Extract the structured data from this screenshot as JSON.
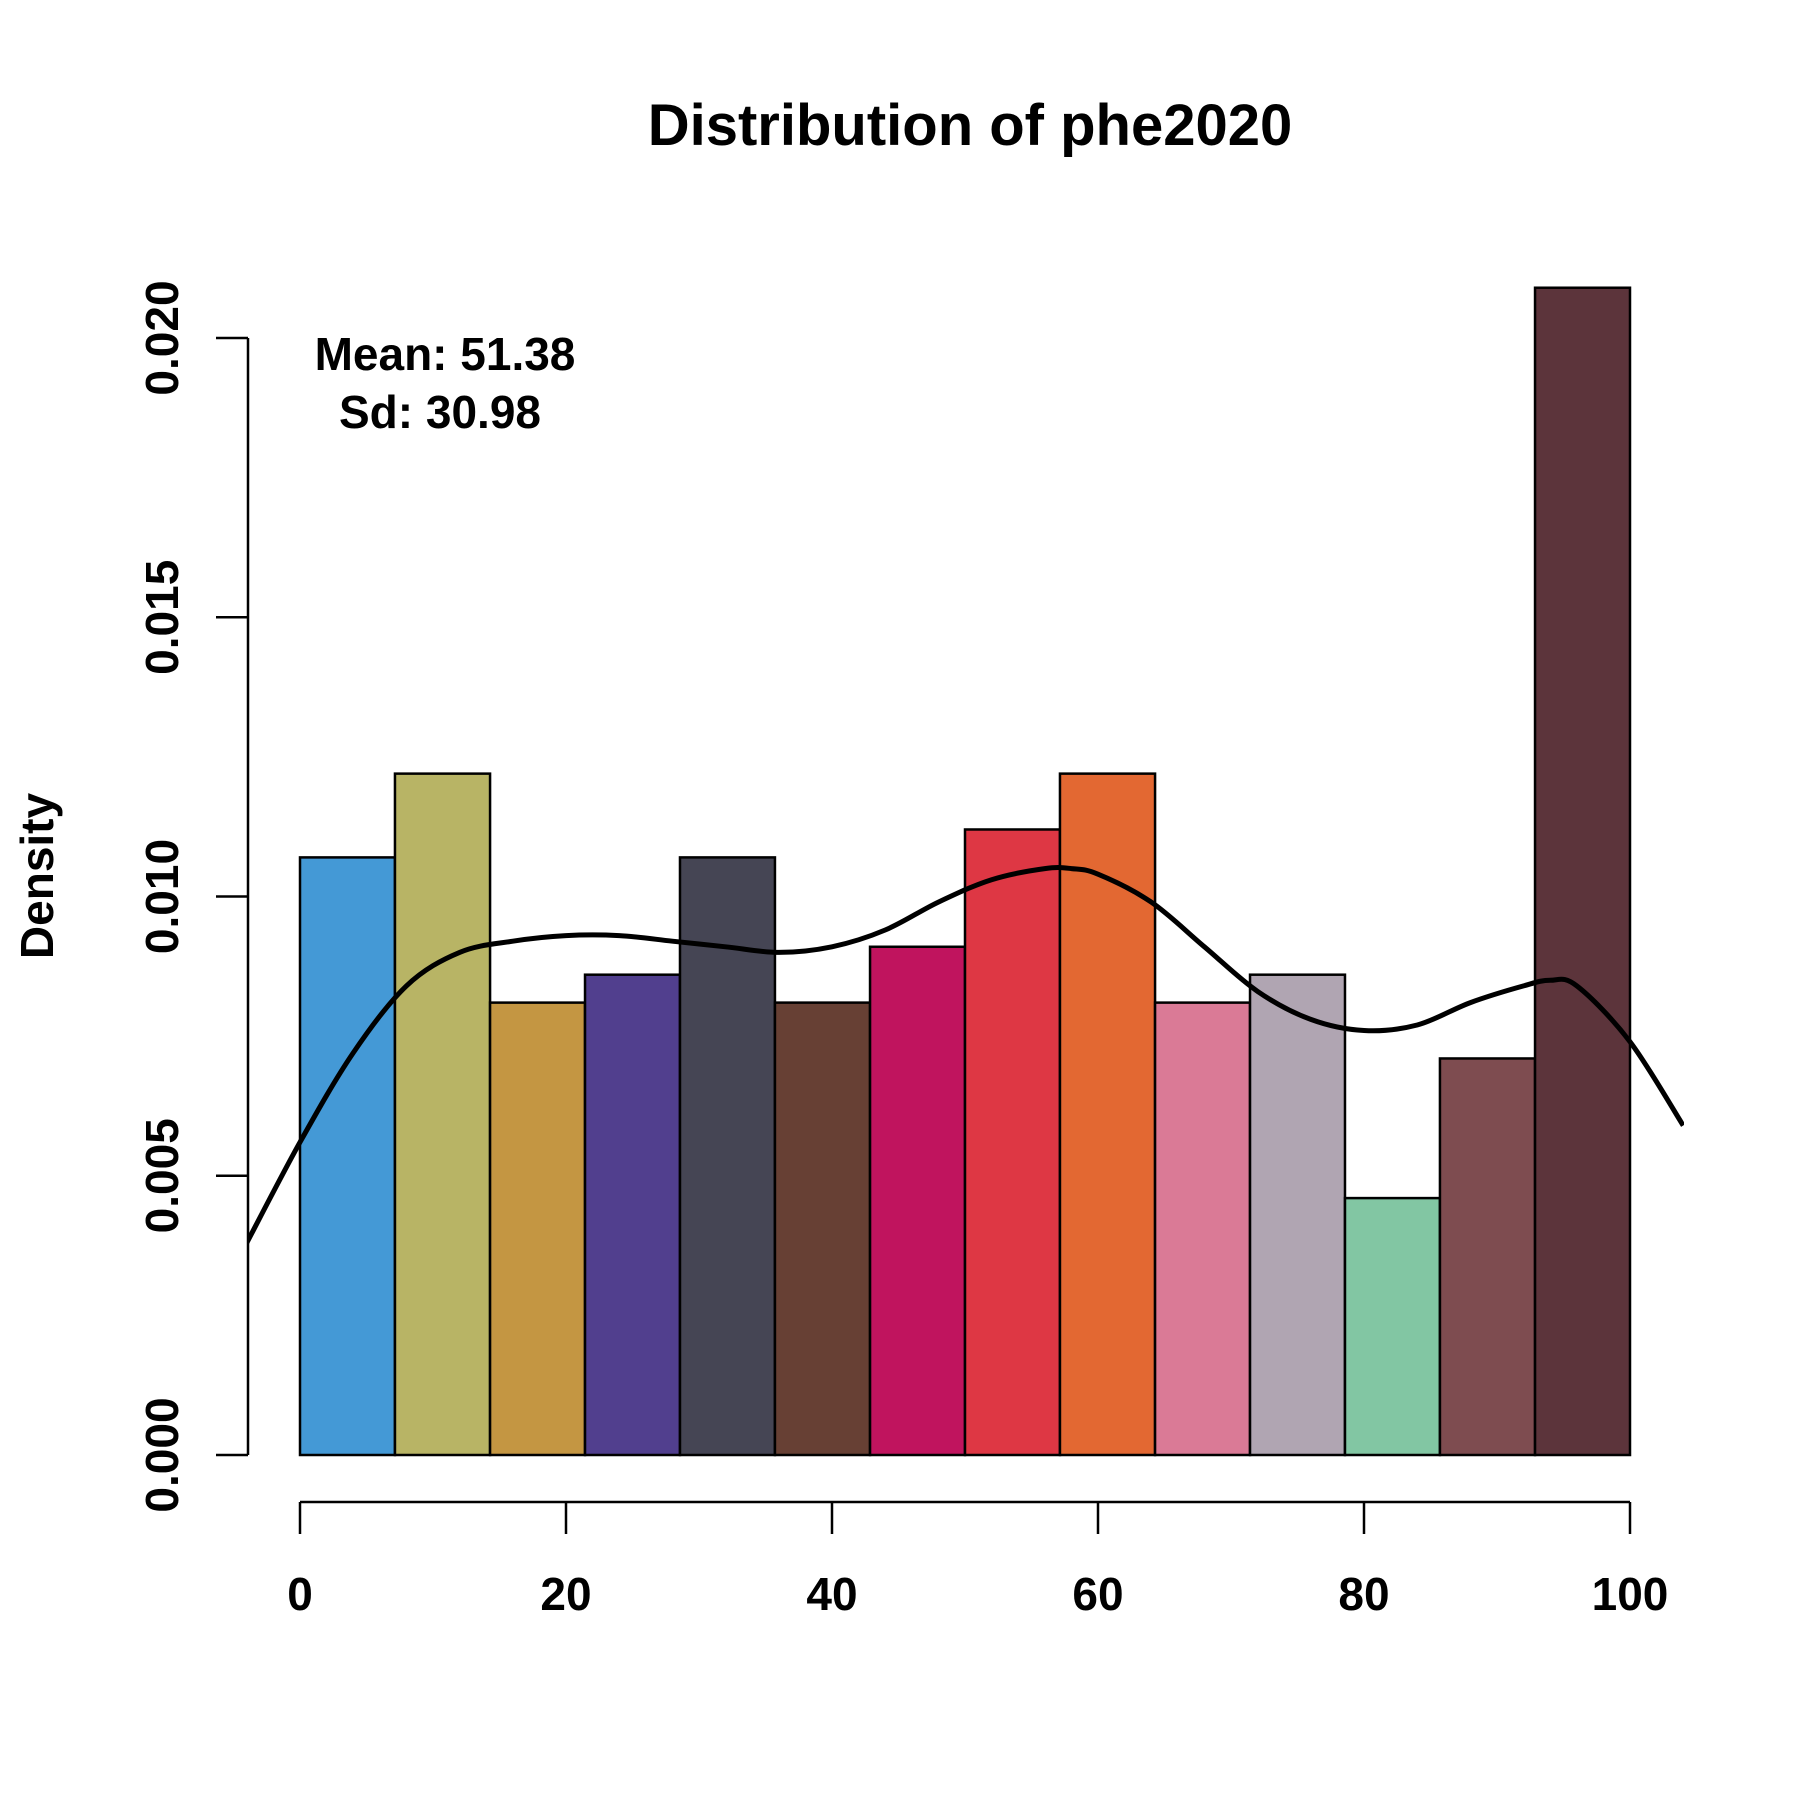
{
  "chart_data": {
    "type": "bar",
    "subtype": "histogram",
    "title": "Distribution of phe2020",
    "xlabel": "",
    "ylabel": "Density",
    "xlim": [
      -5,
      105
    ],
    "ylim": [
      0,
      0.021
    ],
    "x_ticks": [
      0,
      20,
      40,
      60,
      80,
      100
    ],
    "x_tick_labels": [
      "0",
      "20",
      "40",
      "60",
      "80",
      "100"
    ],
    "y_ticks": [
      0,
      0.005,
      0.01,
      0.015,
      0.02
    ],
    "y_tick_labels": [
      "0.000",
      "0.005",
      "0.010",
      "0.015",
      "0.020"
    ],
    "grid": false,
    "bins": [
      {
        "x0": 0.0,
        "x1": 7.14,
        "density": 0.0107,
        "color": "#4499d6"
      },
      {
        "x0": 7.14,
        "x1": 14.29,
        "density": 0.0122,
        "color": "#b8b465"
      },
      {
        "x0": 14.29,
        "x1": 21.43,
        "density": 0.0081,
        "color": "#c49642"
      },
      {
        "x0": 21.43,
        "x1": 28.57,
        "density": 0.0086,
        "color": "#513f8e"
      },
      {
        "x0": 28.57,
        "x1": 35.71,
        "density": 0.0107,
        "color": "#454554"
      },
      {
        "x0": 35.71,
        "x1": 42.86,
        "density": 0.0081,
        "color": "#674034"
      },
      {
        "x0": 42.86,
        "x1": 50.0,
        "density": 0.0091,
        "color": "#c0145e"
      },
      {
        "x0": 50.0,
        "x1": 57.14,
        "density": 0.0112,
        "color": "#de3744"
      },
      {
        "x0": 57.14,
        "x1": 64.29,
        "density": 0.0122,
        "color": "#e36832"
      },
      {
        "x0": 64.29,
        "x1": 71.43,
        "density": 0.0081,
        "color": "#da7a96"
      },
      {
        "x0": 71.43,
        "x1": 78.57,
        "density": 0.0086,
        "color": "#b0a5b2"
      },
      {
        "x0": 78.57,
        "x1": 85.71,
        "density": 0.0046,
        "color": "#82c6a3"
      },
      {
        "x0": 85.71,
        "x1": 92.86,
        "density": 0.0071,
        "color": "#7e4c50"
      },
      {
        "x0": 92.86,
        "x1": 100.0,
        "density": 0.0209,
        "color": "#5c343b"
      }
    ],
    "density_curve": {
      "x": [
        -4,
        0,
        4,
        8,
        12,
        16,
        20,
        24,
        28,
        32,
        36,
        40,
        44,
        48,
        52,
        56,
        58,
        60,
        64,
        68,
        72,
        76,
        80,
        84,
        88,
        92,
        94,
        96,
        100,
        104
      ],
      "y": [
        0.0038,
        0.0056,
        0.0072,
        0.0084,
        0.009,
        0.0092,
        0.0093,
        0.0093,
        0.0092,
        0.0091,
        0.009,
        0.0091,
        0.0094,
        0.0099,
        0.0103,
        0.0105,
        0.0105,
        0.0104,
        0.0099,
        0.0091,
        0.0083,
        0.0078,
        0.0076,
        0.0077,
        0.0081,
        0.0084,
        0.0085,
        0.0084,
        0.0074,
        0.0059
      ]
    },
    "annotations": {
      "mean": "Mean: 51.38",
      "sd": "Sd: 30.98"
    }
  }
}
